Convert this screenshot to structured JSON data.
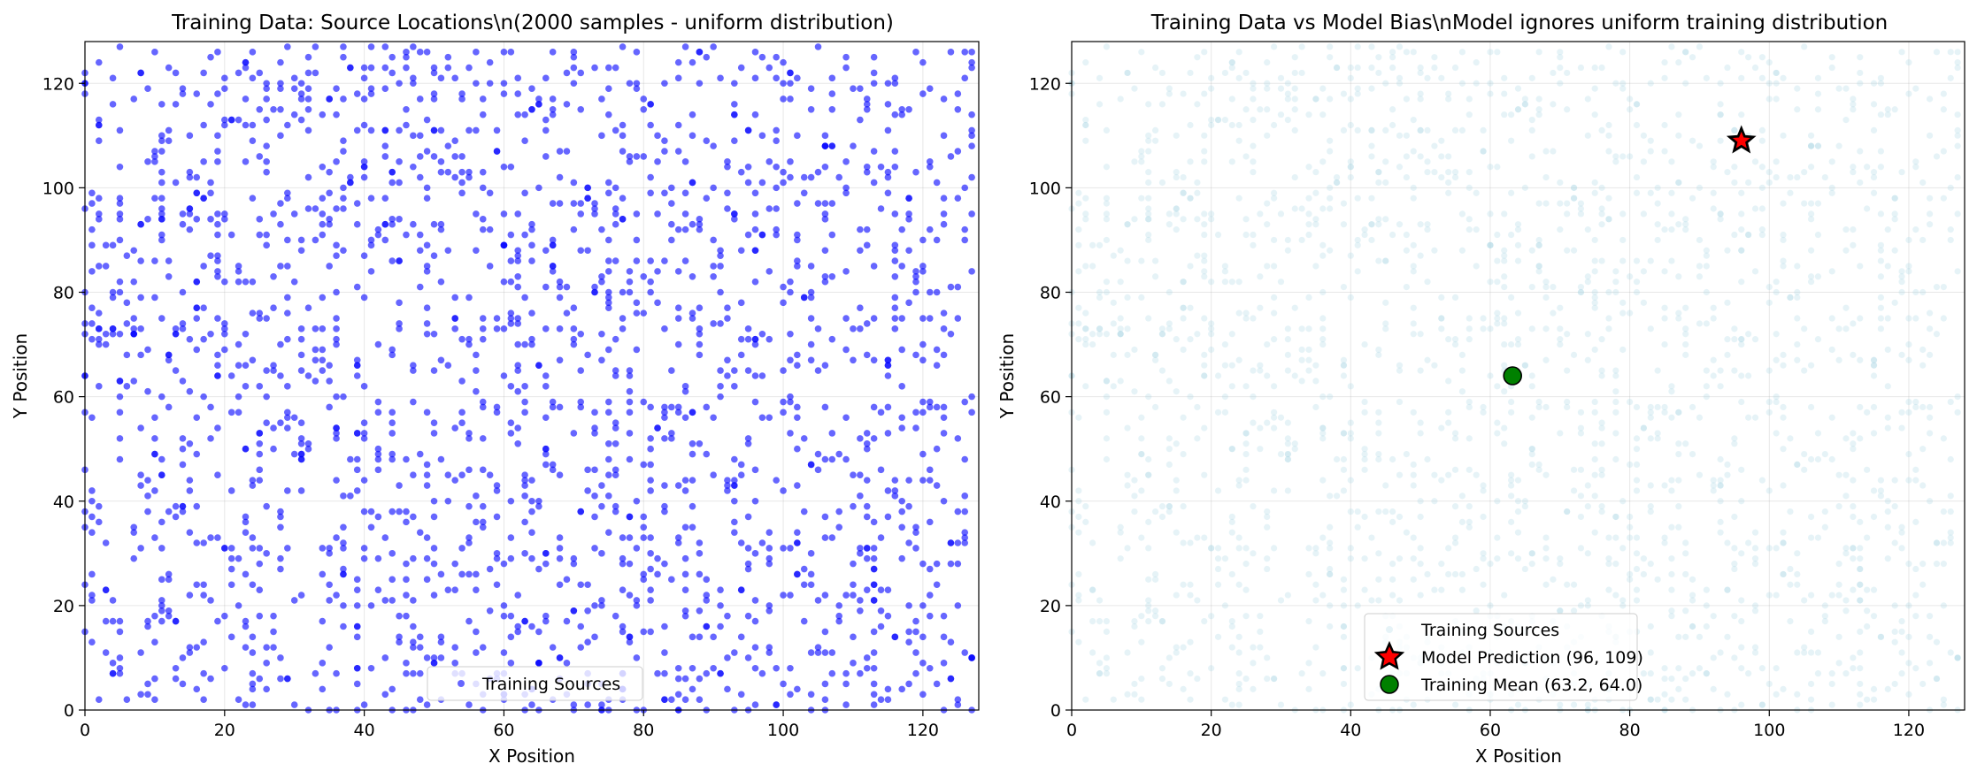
{
  "chart_data": [
    {
      "type": "scatter",
      "title": "Training Data: Source Locations\\n(2000 samples - uniform distribution)",
      "xlabel": "X Position",
      "ylabel": "Y Position",
      "xlim": [
        0,
        128
      ],
      "ylim": [
        0,
        128
      ],
      "xticks": [
        "0",
        "20",
        "40",
        "60",
        "80",
        "100",
        "120"
      ],
      "yticks": [
        "0",
        "20",
        "40",
        "60",
        "80",
        "100",
        "120"
      ],
      "grid": true,
      "legend_position": "lower center",
      "series": [
        {
          "name": "Training Sources",
          "color": "#0000ff",
          "marker": "circle",
          "alpha": 0.6,
          "distribution": "uniform",
          "count": 2000,
          "x_range": [
            0,
            127
          ],
          "y_range": [
            0,
            127
          ]
        }
      ]
    },
    {
      "type": "scatter",
      "title": "Training Data vs Model Bias\\nModel ignores uniform training distribution",
      "xlabel": "X Position",
      "ylabel": "Y Position",
      "xlim": [
        0,
        128
      ],
      "ylim": [
        0,
        128
      ],
      "xticks": [
        "0",
        "20",
        "40",
        "60",
        "80",
        "100",
        "120"
      ],
      "yticks": [
        "0",
        "20",
        "40",
        "60",
        "80",
        "100",
        "120"
      ],
      "grid": true,
      "legend_position": "lower center",
      "series": [
        {
          "name": "Training Sources",
          "color": "#add8e6",
          "marker": "circle",
          "alpha": 0.3,
          "distribution": "uniform",
          "count": 2000,
          "x_range": [
            0,
            127
          ],
          "y_range": [
            0,
            127
          ]
        },
        {
          "name": "Model Prediction (96, 109)",
          "color": "#ff0000",
          "edgecolor": "#000000",
          "marker": "star",
          "points": [
            {
              "x": 96,
              "y": 109
            }
          ]
        },
        {
          "name": "Training Mean (63.2, 64.0)",
          "color": "#008000",
          "edgecolor": "#000000",
          "marker": "circle",
          "points": [
            {
              "x": 63.2,
              "y": 64.0
            }
          ]
        }
      ]
    }
  ]
}
